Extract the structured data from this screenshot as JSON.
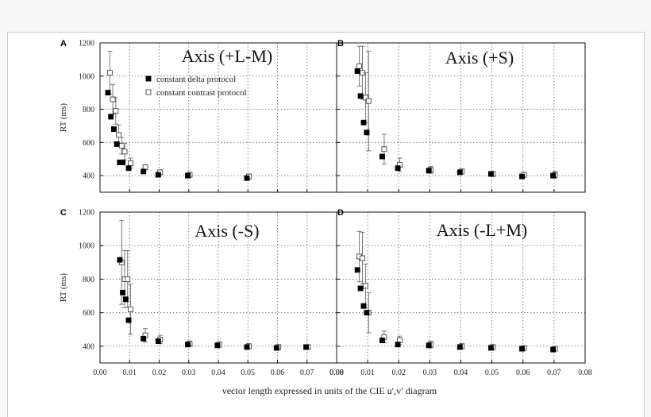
{
  "chart_data": {
    "type": "scatter",
    "xlabel": "vector length expressed in units of the  CIE u′,v′ diagram",
    "x_ticks": [
      "0.00",
      "0.01",
      "0.02",
      "0.03",
      "0.04",
      "0.05",
      "0.06",
      "0.07",
      "0.08"
    ],
    "y_ticks": [
      "400",
      "600",
      "800",
      "1000",
      "1200"
    ],
    "xlim": [
      0,
      0.08
    ],
    "ylim": [
      300,
      1200
    ],
    "grid": true,
    "legend": {
      "placement": "top-left of panel A",
      "entries": [
        "constant delta protocol",
        "constant contrast protocol"
      ]
    },
    "panels": [
      {
        "letter": "A",
        "title": "Axis (+L-M)",
        "ylabel": "RT (ms)",
        "series": [
          {
            "name": "constant delta protocol",
            "marker": "filled-square",
            "x": [
              0.003,
              0.004,
              0.005,
              0.006,
              0.007,
              0.008,
              0.01,
              0.015,
              0.02,
              0.03,
              0.05
            ],
            "y": [
              900,
              755,
              680,
              590,
              480,
              480,
              445,
              425,
              405,
              400,
              385
            ],
            "err": [
              0,
              0,
              0,
              0,
              0,
              0,
              0,
              0,
              0,
              0,
              0
            ]
          },
          {
            "name": "constant contrast protocol",
            "marker": "open-square",
            "x": [
              0.003,
              0.004,
              0.005,
              0.006,
              0.007,
              0.008,
              0.01,
              0.015,
              0.02,
              0.03,
              0.05
            ],
            "y": [
              1020,
              860,
              790,
              645,
              580,
              545,
              475,
              450,
              420,
              405,
              395
            ],
            "err": [
              130,
              90,
              80,
              60,
              50,
              50,
              30,
              15,
              15,
              15,
              15
            ]
          }
        ]
      },
      {
        "letter": "B",
        "title": "Axis (+S)",
        "ylabel": "",
        "series": [
          {
            "name": "constant delta protocol",
            "marker": "filled-square",
            "x": [
              0.007,
              0.008,
              0.009,
              0.01,
              0.015,
              0.02,
              0.03,
              0.04,
              0.05,
              0.06,
              0.07
            ],
            "y": [
              1030,
              880,
              720,
              660,
              515,
              445,
              430,
              420,
              410,
              395,
              400
            ],
            "err": [
              0,
              0,
              0,
              0,
              0,
              0,
              0,
              0,
              0,
              0,
              0
            ]
          },
          {
            "name": "constant contrast protocol",
            "marker": "open-square",
            "x": [
              0.007,
              0.008,
              0.009,
              0.01,
              0.015,
              0.02,
              0.03,
              0.04,
              0.05,
              0.06,
              0.07
            ],
            "y": [
              1060,
              1020,
              870,
              850,
              560,
              465,
              435,
              425,
              410,
              405,
              405
            ],
            "err": [
              120,
              160,
              150,
              300,
              90,
              40,
              20,
              15,
              15,
              15,
              20
            ]
          }
        ]
      },
      {
        "letter": "C",
        "title": "Axis (-S)",
        "ylabel": "RT (ms)",
        "series": [
          {
            "name": "constant delta protocol",
            "marker": "filled-square",
            "x": [
              0.007,
              0.008,
              0.009,
              0.01,
              0.015,
              0.02,
              0.03,
              0.04,
              0.05,
              0.06,
              0.07
            ],
            "y": [
              915,
              720,
              680,
              555,
              445,
              430,
              410,
              405,
              395,
              390,
              395
            ],
            "err": [
              0,
              0,
              0,
              0,
              0,
              0,
              0,
              0,
              0,
              0,
              0
            ]
          },
          {
            "name": "constant contrast protocol",
            "marker": "open-square",
            "x": [
              0.007,
              0.008,
              0.009,
              0.01,
              0.015,
              0.02,
              0.03,
              0.04,
              0.05,
              0.06,
              0.07
            ],
            "y": [
              900,
              800,
              800,
              620,
              465,
              440,
              415,
              410,
              400,
              395,
              395
            ],
            "err": [
              250,
              170,
              170,
              150,
              40,
              25,
              15,
              15,
              15,
              15,
              12
            ]
          }
        ]
      },
      {
        "letter": "D",
        "title": "Axis (-L+M)",
        "ylabel": "",
        "series": [
          {
            "name": "constant delta protocol",
            "marker": "filled-square",
            "x": [
              0.007,
              0.008,
              0.009,
              0.01,
              0.015,
              0.02,
              0.03,
              0.04,
              0.05,
              0.06,
              0.07
            ],
            "y": [
              855,
              745,
              640,
              600,
              435,
              410,
              405,
              395,
              390,
              385,
              380
            ],
            "err": [
              0,
              0,
              0,
              0,
              0,
              0,
              0,
              0,
              0,
              0,
              0
            ]
          },
          {
            "name": "constant contrast protocol",
            "marker": "open-square",
            "x": [
              0.007,
              0.008,
              0.009,
              0.01,
              0.015,
              0.02,
              0.03,
              0.04,
              0.05,
              0.06,
              0.07
            ],
            "y": [
              935,
              925,
              760,
              600,
              455,
              435,
              410,
              400,
              395,
              390,
              385
            ],
            "err": [
              150,
              155,
              130,
              120,
              35,
              25,
              20,
              15,
              15,
              12,
              12
            ]
          }
        ]
      }
    ]
  }
}
